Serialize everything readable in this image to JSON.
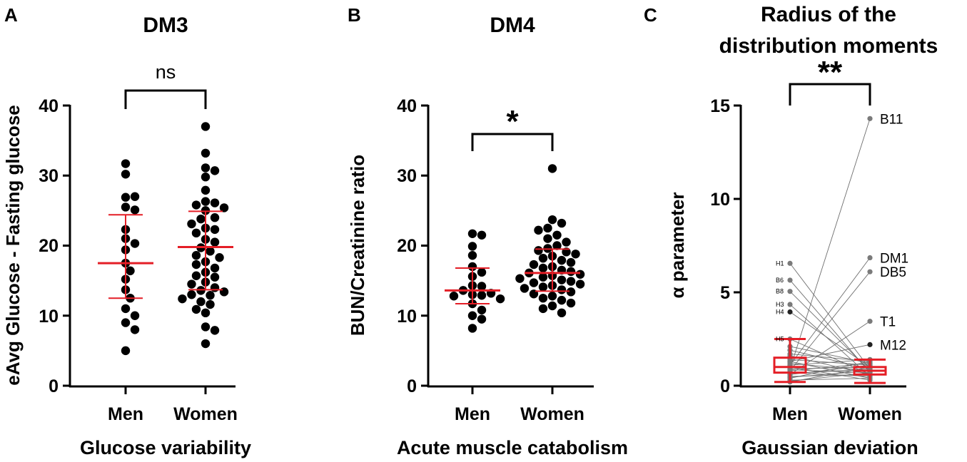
{
  "panels": [
    {
      "letter": "A",
      "title": "DM3",
      "xlabel": "Glucose variability",
      "ylabel": "eAvg Glucose - Fasting glucose",
      "significance": "ns",
      "categories": [
        "Men",
        "Women"
      ],
      "yticks": [
        "0",
        "10",
        "20",
        "30",
        "40"
      ]
    },
    {
      "letter": "B",
      "title": "DM4",
      "xlabel": "Acute muscle catabolism",
      "ylabel": "BUN/Creatinine ratio",
      "significance": "*",
      "categories": [
        "Men",
        "Women"
      ],
      "yticks": [
        "0",
        "10",
        "20",
        "30",
        "40"
      ]
    },
    {
      "letter": "C",
      "title_line1": "Radius of the",
      "title_line2": "distribution moments",
      "xlabel": "Gaussian deviation",
      "ylabel": "α parameter",
      "significance": "**",
      "categories": [
        "Men",
        "Women"
      ],
      "yticks": [
        "0",
        "5",
        "10",
        "15"
      ],
      "women_labels": [
        "B11",
        "DM1",
        "DB5",
        "T1",
        "M12"
      ],
      "men_labels": [
        "H1",
        "B6",
        "B8",
        "H3",
        "H4",
        "H5"
      ]
    }
  ],
  "chart_data": [
    {
      "type": "scatter",
      "title": "DM3",
      "xlabel": "Glucose variability",
      "ylabel": "eAvg Glucose - Fasting glucose",
      "categories": [
        "Men",
        "Women"
      ],
      "ylim": [
        0,
        40
      ],
      "significance": "ns",
      "accent_color": "#e41e26",
      "series": [
        {
          "name": "Men",
          "mean": 17.5,
          "sd_low": 12.5,
          "sd_high": 24.4,
          "values": [
            31.7,
            30.2,
            26.9,
            27.0,
            25.5,
            25.1,
            22.3,
            21.0,
            20.3,
            19.4,
            17.5,
            16.4,
            15.2,
            13.7,
            12.5,
            11.0,
            10.0,
            9.0,
            8.0,
            5.0
          ]
        },
        {
          "name": "Women",
          "mean": 19.8,
          "sd_low": 13.7,
          "sd_high": 24.9,
          "values": [
            37.0,
            33.2,
            31.1,
            30.7,
            29.8,
            27.9,
            26.3,
            26.1,
            25.8,
            25.4,
            25.0,
            24.0,
            23.8,
            23.1,
            22.5,
            22.3,
            21.8,
            20.9,
            20.5,
            19.7,
            19.2,
            18.6,
            18.3,
            17.7,
            17.3,
            16.8,
            16.2,
            15.7,
            15.5,
            14.8,
            14.5,
            14.0,
            13.6,
            13.4,
            13.0,
            12.9,
            12.4,
            12.0,
            11.6,
            10.9,
            10.4,
            8.4,
            7.9,
            6.0
          ]
        }
      ]
    },
    {
      "type": "scatter",
      "title": "DM4",
      "xlabel": "Acute muscle catabolism",
      "ylabel": "BUN/Creatinine ratio",
      "categories": [
        "Men",
        "Women"
      ],
      "ylim": [
        0,
        40
      ],
      "significance": "*",
      "accent_color": "#e41e26",
      "series": [
        {
          "name": "Men",
          "mean": 13.6,
          "sd_low": 11.7,
          "sd_high": 16.8,
          "values": [
            21.7,
            21.5,
            19.9,
            18.6,
            17.0,
            16.2,
            15.6,
            14.3,
            14.2,
            13.6,
            13.2,
            13.0,
            12.9,
            12.8,
            12.4,
            11.7,
            10.8,
            10.0,
            9.5,
            8.2
          ]
        },
        {
          "name": "Women",
          "mean": 16.1,
          "sd_low": 13.5,
          "sd_high": 19.5,
          "values": [
            31.0,
            23.7,
            23.2,
            22.5,
            22.2,
            21.5,
            21.0,
            20.5,
            20.0,
            19.6,
            19.3,
            19.1,
            18.8,
            18.5,
            18.2,
            17.9,
            17.6,
            17.3,
            17.0,
            16.8,
            16.5,
            16.3,
            16.1,
            15.9,
            15.7,
            15.5,
            15.3,
            15.1,
            14.9,
            14.7,
            14.5,
            14.3,
            14.1,
            13.9,
            13.7,
            13.4,
            13.1,
            12.8,
            12.5,
            12.2,
            11.8,
            11.4,
            11.0,
            10.4
          ]
        }
      ]
    },
    {
      "type": "box",
      "title": "Radius of the distribution moments",
      "xlabel": "Gaussian deviation",
      "ylabel": "α parameter",
      "categories": [
        "Men",
        "Women"
      ],
      "ylim": [
        0,
        15
      ],
      "significance": "**",
      "accent_color": "#e41e26",
      "boxes": [
        {
          "name": "Men",
          "whisker_low": 0.2,
          "q1": 0.7,
          "median": 1.0,
          "q3": 1.5,
          "whisker_high": 2.5
        },
        {
          "name": "Women",
          "whisker_low": 0.15,
          "q1": 0.6,
          "median": 0.8,
          "q3": 1.0,
          "whisker_high": 1.4
        }
      ],
      "paired": [
        {
          "label_w": "B11",
          "w": 14.3,
          "m": 0.9
        },
        {
          "label_w": "DM1",
          "w": 6.85,
          "m": 1.1
        },
        {
          "label_w": "DB5",
          "w": 6.1,
          "m": 0.8
        },
        {
          "label_w": "T1",
          "w": 3.45,
          "m": 0.6
        },
        {
          "label_w": "M12",
          "w": 2.2,
          "m": 1.3
        },
        {
          "label_m": "H1",
          "m": 6.55,
          "w": 0.9
        },
        {
          "label_m": "B6",
          "m": 5.65,
          "w": 0.7
        },
        {
          "label_m": "B8",
          "m": 5.05,
          "w": 0.8
        },
        {
          "label_m": "H3",
          "m": 4.35,
          "w": 0.5
        },
        {
          "label_m": "H4",
          "m": 3.95,
          "w": 1.0
        },
        {
          "label_m": "H5",
          "m": 2.5,
          "w": 0.6
        },
        {
          "m": 2.1,
          "w": 1.2
        },
        {
          "m": 1.9,
          "w": 0.9
        },
        {
          "m": 1.7,
          "w": 1.3
        },
        {
          "m": 1.6,
          "w": 0.6
        },
        {
          "m": 1.4,
          "w": 1.1
        },
        {
          "m": 1.3,
          "w": 0.4
        },
        {
          "m": 1.2,
          "w": 0.8
        },
        {
          "m": 1.1,
          "w": 1.4
        },
        {
          "m": 1.0,
          "w": 0.3
        },
        {
          "m": 0.9,
          "w": 1.0
        },
        {
          "m": 0.85,
          "w": 0.7
        },
        {
          "m": 0.8,
          "w": 1.2
        },
        {
          "m": 0.7,
          "w": 0.5
        },
        {
          "m": 0.65,
          "w": 0.9
        },
        {
          "m": 0.6,
          "w": 1.1
        },
        {
          "m": 0.5,
          "w": 0.6
        },
        {
          "m": 0.45,
          "w": 0.8
        },
        {
          "m": 0.4,
          "w": 1.3
        },
        {
          "m": 0.3,
          "w": 0.4
        },
        {
          "m": 0.25,
          "w": 0.7
        },
        {
          "m": 0.2,
          "w": 1.0
        }
      ]
    }
  ]
}
